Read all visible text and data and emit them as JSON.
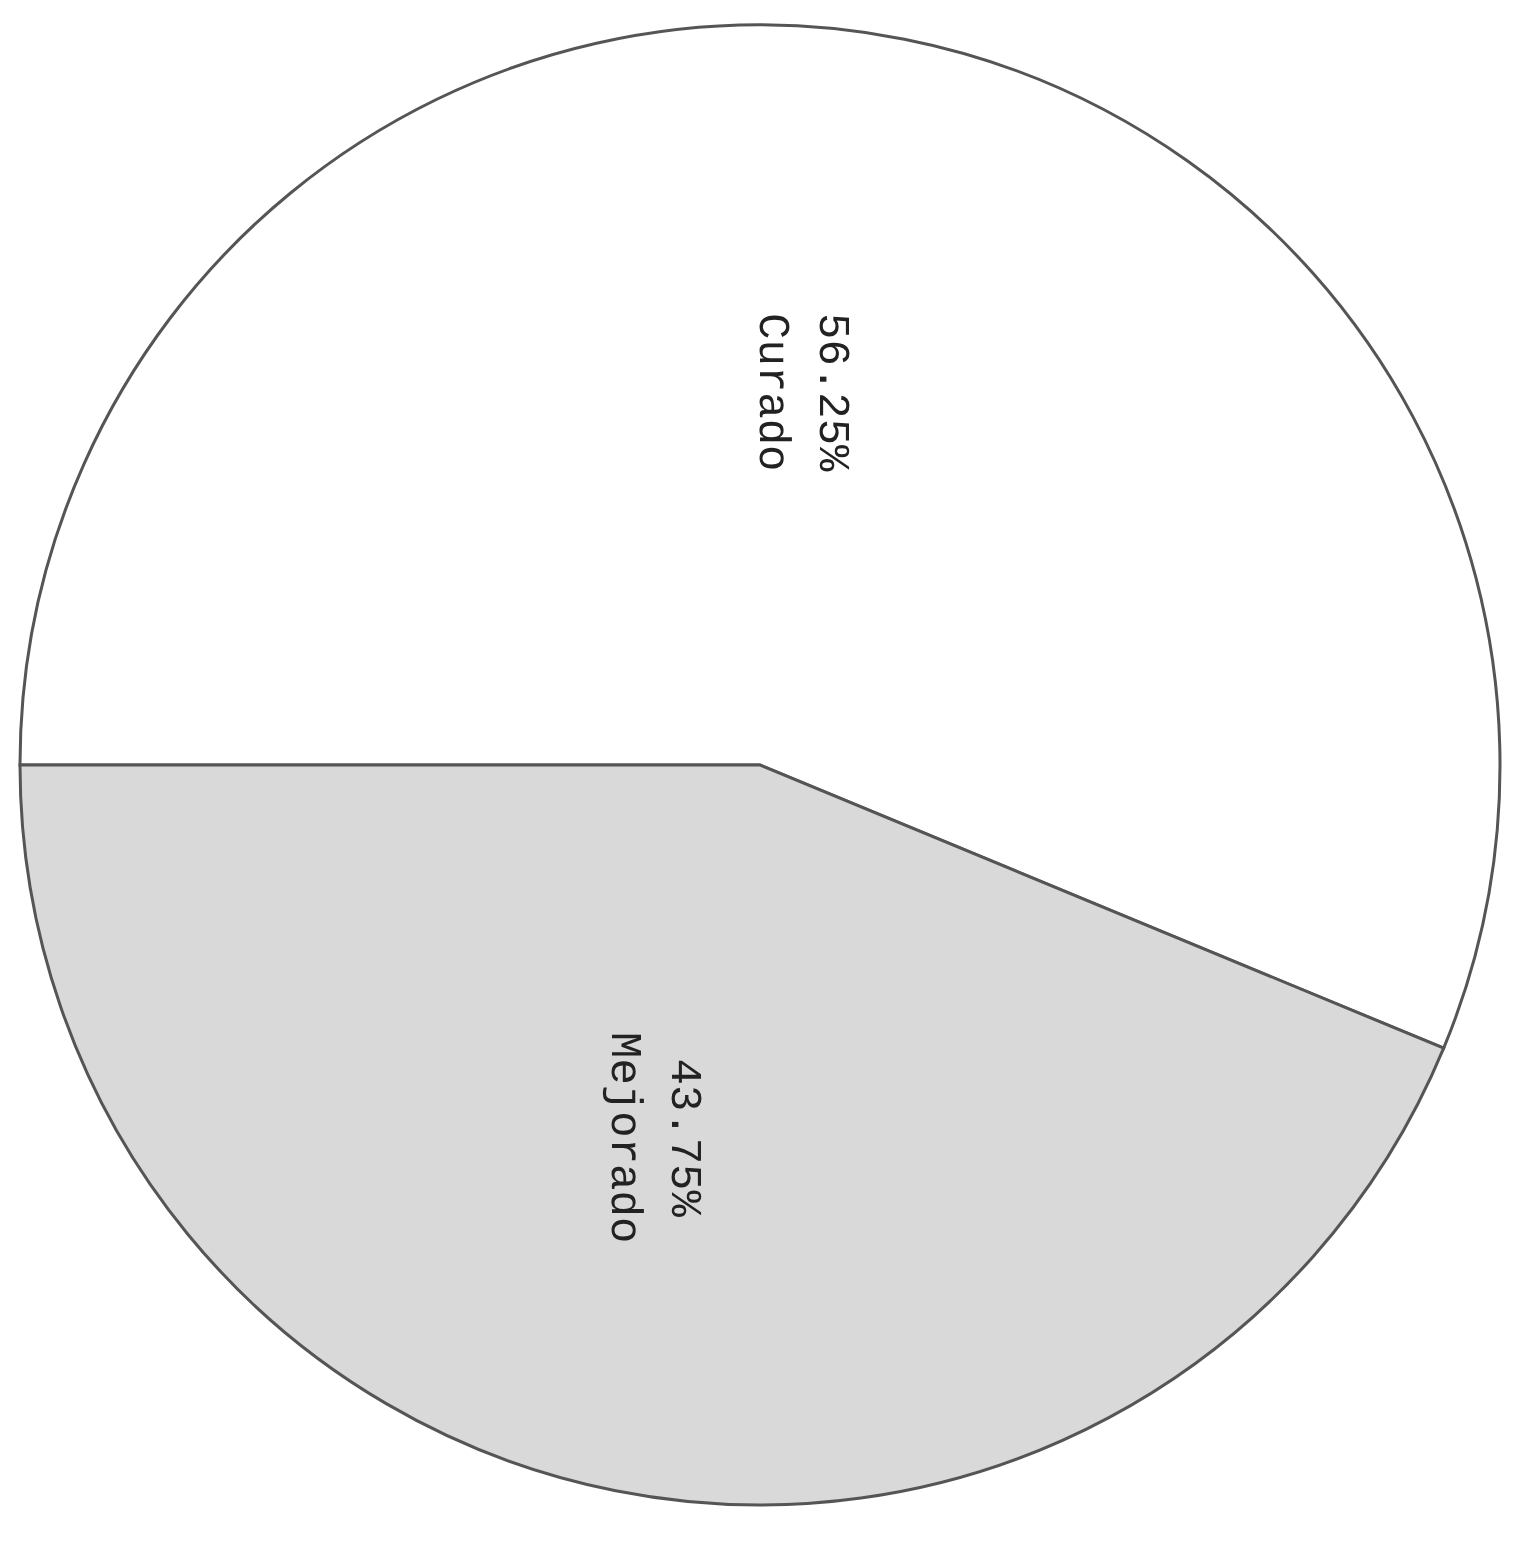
{
  "chart_data": {
    "type": "pie",
    "categories": [
      "Curado",
      "Mejorado"
    ],
    "values": [
      56.25,
      43.75
    ],
    "colors": [
      "#ffffff",
      "#d9d9d9"
    ],
    "value_labels": [
      "56.25%",
      "43.75%"
    ]
  }
}
